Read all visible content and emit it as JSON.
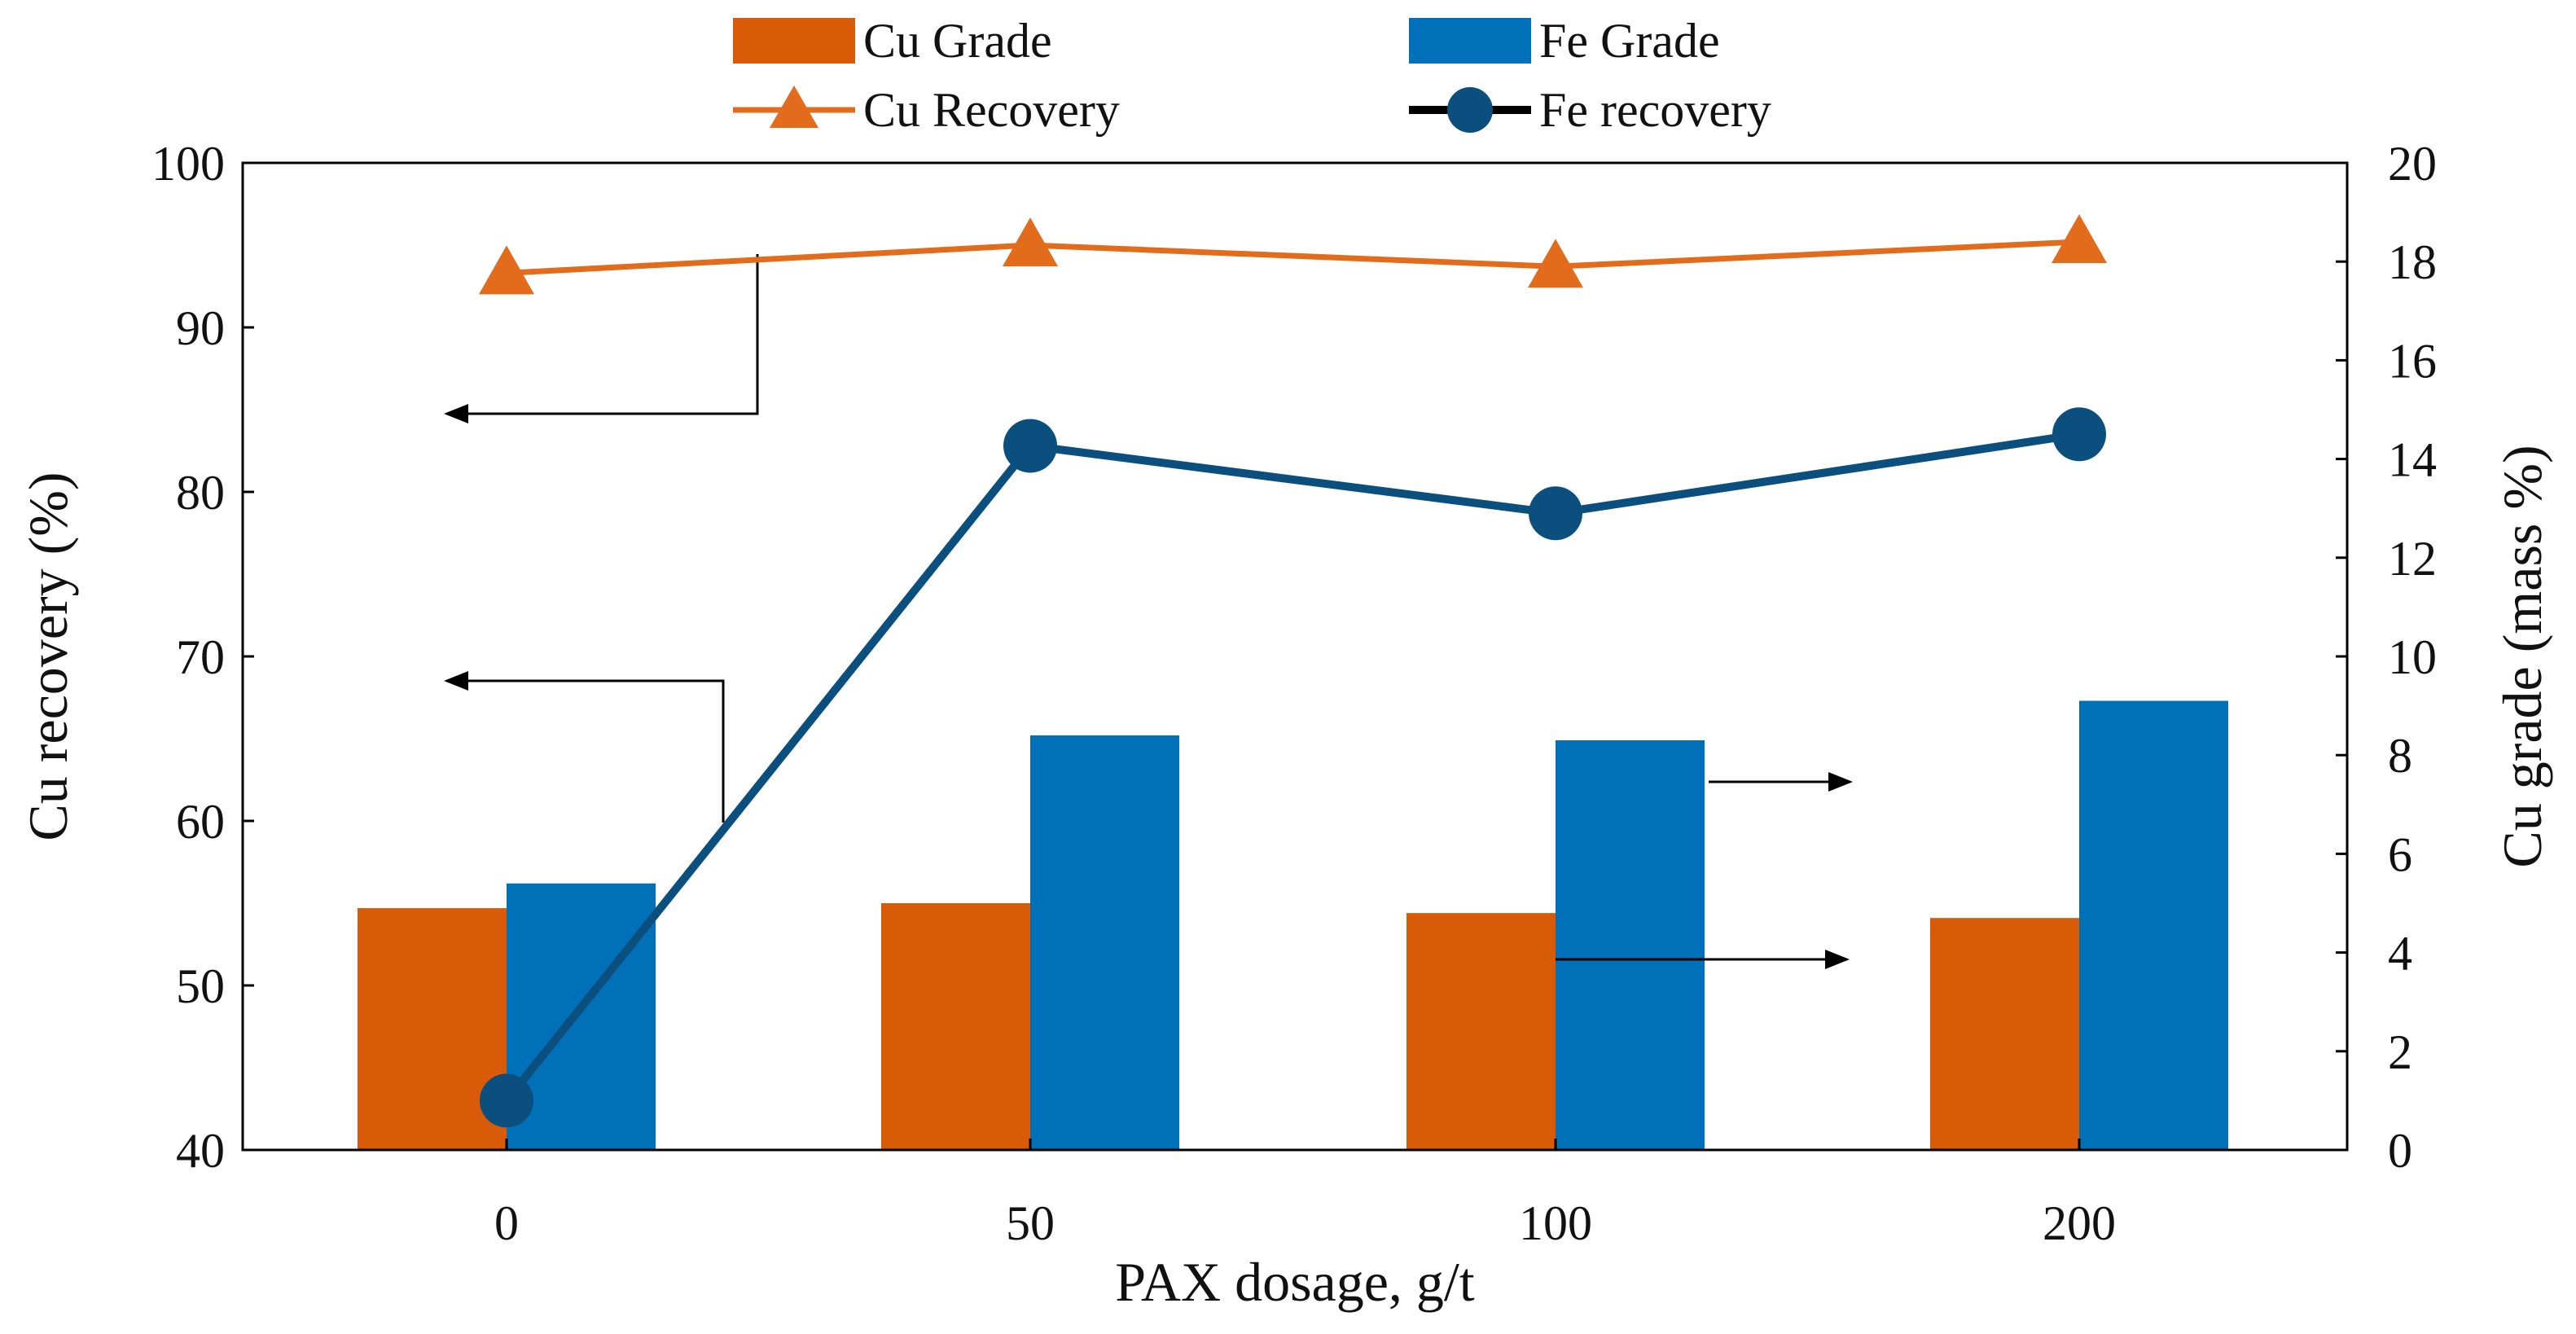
{
  "chart_data": {
    "type": "bar+line",
    "categories": [
      "0",
      "50",
      "100",
      "200"
    ],
    "xlabel": "PAX dosage, g/t",
    "ylabel_left": "Cu recovery (%)",
    "ylabel_right": "Cu grade (mass %)",
    "ylim_left": [
      40,
      100
    ],
    "ylim_right": [
      0,
      20
    ],
    "yticks_left": [
      "40",
      "50",
      "60",
      "70",
      "80",
      "90",
      "100"
    ],
    "yticks_right": [
      "0",
      "2",
      "4",
      "6",
      "8",
      "10",
      "12",
      "14",
      "16",
      "18",
      "20"
    ],
    "grid": false,
    "legend_position": "top",
    "series": [
      {
        "name": "Cu Grade",
        "kind": "bar",
        "axis": "right",
        "color": "#d95a07",
        "values": [
          4.9,
          5.0,
          4.8,
          4.7
        ]
      },
      {
        "name": "Fe Grade",
        "kind": "bar",
        "axis": "right",
        "color": "#0070b8",
        "values": [
          5.4,
          8.4,
          8.3,
          9.1
        ]
      },
      {
        "name": "Cu Recovery",
        "kind": "line",
        "marker": "triangle",
        "axis": "left",
        "color": "#e36c1c",
        "values": [
          93.3,
          95.0,
          93.7,
          95.2
        ]
      },
      {
        "name": "Fe recovery",
        "kind": "line",
        "marker": "circle",
        "axis": "left",
        "color": "#0b4f7e",
        "legend_line_color": "#000000",
        "values": [
          43.0,
          82.8,
          78.7,
          83.5
        ]
      }
    ],
    "annotations": [
      {
        "kind": "arrow",
        "direction": "left",
        "label": "Cu Recovery refers to left axis"
      },
      {
        "kind": "arrow",
        "direction": "left",
        "label": "Fe recovery refers to left axis"
      },
      {
        "kind": "arrow",
        "direction": "right",
        "label": "Fe Grade refers to right axis"
      },
      {
        "kind": "arrow",
        "direction": "right",
        "label": "Cu Grade refers to right axis"
      }
    ]
  }
}
